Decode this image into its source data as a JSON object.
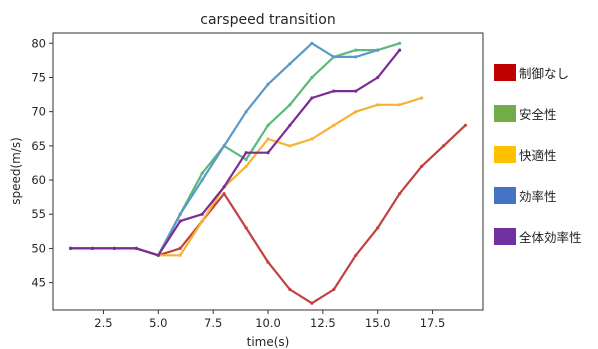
{
  "chart_data": {
    "type": "line",
    "title": "carspeed transition",
    "xlabel": "time(s)",
    "ylabel": "speed(m/s)",
    "xlim": [
      0.2,
      19.8
    ],
    "ylim": [
      41.0,
      81.5
    ],
    "xticks": [
      2.5,
      5.0,
      7.5,
      10.0,
      12.5,
      15.0,
      17.5
    ],
    "xtick_labels": [
      "2.5",
      "5.0",
      "7.5",
      "10.0",
      "12.5",
      "15.0",
      "17.5"
    ],
    "yticks": [
      45,
      50,
      55,
      60,
      65,
      70,
      75,
      80
    ],
    "ytick_labels": [
      "45",
      "50",
      "55",
      "60",
      "65",
      "70",
      "75",
      "80"
    ],
    "grid": false,
    "legend_position": "right-outside",
    "series": [
      {
        "name": "制御なし",
        "legend_color": "#c00000",
        "line_color": "#c0413d",
        "x": [
          1,
          2,
          3,
          4,
          5,
          6,
          7,
          8,
          9,
          10,
          11,
          12,
          13,
          14,
          15,
          16,
          17,
          18,
          19
        ],
        "y": [
          50,
          50,
          50,
          50,
          49,
          50,
          54,
          58,
          53,
          48,
          44,
          42,
          44,
          49,
          53,
          58,
          62,
          65,
          68
        ]
      },
      {
        "name": "安全性",
        "legend_color": "#70ad47",
        "line_color": "#5db87d",
        "x": [
          1,
          2,
          3,
          4,
          5,
          6,
          7,
          8,
          9,
          10,
          11,
          12,
          13,
          14,
          15,
          16
        ],
        "y": [
          50,
          50,
          50,
          50,
          49,
          55,
          61,
          65,
          63,
          68,
          71,
          75,
          78,
          79,
          79,
          80
        ]
      },
      {
        "name": "快適性",
        "legend_color": "#ffc000",
        "line_color": "#f5b233",
        "x": [
          1,
          2,
          3,
          4,
          5,
          6,
          7,
          8,
          9,
          10,
          11,
          12,
          13,
          14,
          15,
          16,
          17
        ],
        "y": [
          50,
          50,
          50,
          50,
          49,
          49,
          54,
          59,
          62,
          66,
          65,
          66,
          68,
          70,
          71,
          71,
          72
        ]
      },
      {
        "name": "効率性",
        "legend_color": "#4472c4",
        "line_color": "#5b9ac6",
        "x": [
          1,
          2,
          3,
          4,
          5,
          6,
          7,
          8,
          9,
          10,
          11,
          12,
          13,
          14,
          15
        ],
        "y": [
          50,
          50,
          50,
          50,
          49,
          55,
          60,
          65,
          70,
          74,
          77,
          80,
          78,
          78,
          79
        ]
      },
      {
        "name": "全体効率性",
        "legend_color": "#7030a0",
        "line_color": "#7b2d93",
        "x": [
          1,
          2,
          3,
          4,
          5,
          6,
          7,
          8,
          9,
          10,
          11,
          12,
          13,
          14,
          15,
          16
        ],
        "y": [
          50,
          50,
          50,
          50,
          49,
          54,
          55,
          59,
          64,
          64,
          68,
          72,
          73,
          73,
          75,
          79
        ]
      }
    ]
  }
}
